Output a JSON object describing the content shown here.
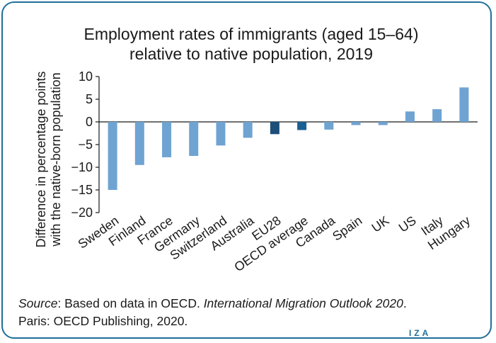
{
  "chart_data": {
    "type": "bar",
    "title_line1": "Employment rates of immigrants (aged 15–64)",
    "title_line2": "relative to native population, 2019",
    "ylabel_line1": "Difference in percentage points",
    "ylabel_line2": "with the native-born population",
    "categories": [
      "Sweden",
      "Finland",
      "France",
      "Germany",
      "Switzerland",
      "Australia",
      "EU28",
      "OECD average",
      "Canada",
      "Spain",
      "UK",
      "US",
      "Italy",
      "Hungary"
    ],
    "values": [
      -15.0,
      -9.5,
      -7.8,
      -7.5,
      -5.2,
      -3.5,
      -2.7,
      -1.8,
      -1.7,
      -0.7,
      -0.7,
      2.3,
      2.8,
      7.6
    ],
    "highlight": {
      "EU28": "#1d4e79",
      "OECD average": "#1a5f93"
    },
    "bar_color": "#6fa3d2",
    "ylim": [
      -20,
      10
    ],
    "yticks": [
      10,
      5,
      0,
      -5,
      -10,
      -15,
      -20
    ],
    "ytick_labels": [
      "10",
      "5",
      "0",
      "−5",
      "−10",
      "−15",
      "−20"
    ]
  },
  "source": {
    "prefix": "Source",
    "text1": ": Based on data in OECD. ",
    "italic": "International Migration Outlook 2020",
    "text2": ".",
    "line2": "Paris: OECD Publishing, 2020."
  },
  "logo": "IZA"
}
